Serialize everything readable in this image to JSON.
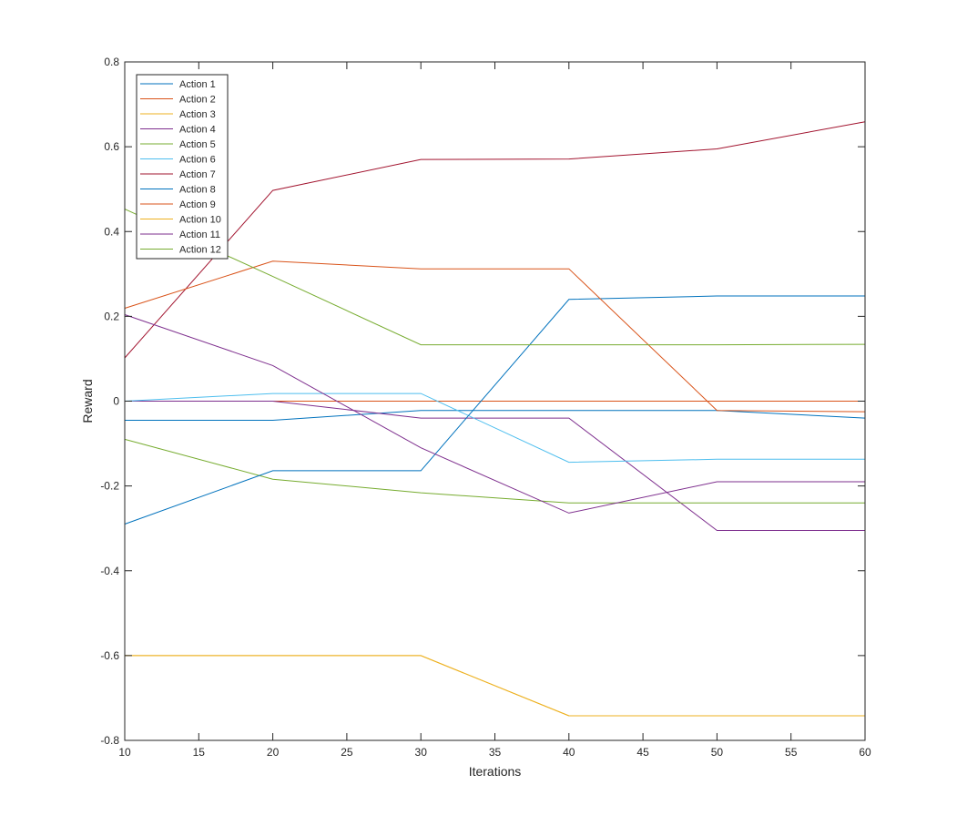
{
  "chart_data": {
    "type": "line",
    "title": "",
    "xlabel": "Iterations",
    "ylabel": "Reward",
    "xlim": [
      10,
      60
    ],
    "ylim": [
      -0.8,
      0.8
    ],
    "x_ticks": [
      "10",
      "15",
      "20",
      "25",
      "30",
      "35",
      "40",
      "45",
      "50",
      "55",
      "60"
    ],
    "y_ticks": [
      "-0.8",
      "-0.6",
      "-0.4",
      "-0.2",
      "0",
      "0.2",
      "0.4",
      "0.6",
      "0.8"
    ],
    "grid": false,
    "legend_position": "top-left",
    "x": [
      10,
      20,
      30,
      40,
      50,
      60
    ],
    "series": [
      {
        "name": "Action 1",
        "color": "#0072BD",
        "values": [
          -0.045,
          -0.045,
          -0.022,
          -0.022,
          -0.022,
          -0.04
        ]
      },
      {
        "name": "Action 2",
        "color": "#D95319",
        "values": [
          0.0,
          0.0,
          0.0,
          0.0,
          0.0,
          0.0
        ]
      },
      {
        "name": "Action 3",
        "color": "#EDB120",
        "values": [
          -0.6,
          -0.6,
          -0.6,
          -0.742,
          -0.742,
          -0.742
        ]
      },
      {
        "name": "Action 4",
        "color": "#7E2F8E",
        "values": [
          0.0,
          0.0,
          -0.04,
          -0.04,
          -0.305,
          -0.305
        ]
      },
      {
        "name": "Action 5",
        "color": "#77AC30",
        "values": [
          -0.09,
          -0.184,
          -0.216,
          -0.24,
          -0.24,
          -0.24
        ]
      },
      {
        "name": "Action 6",
        "color": "#4DBEEE",
        "values": [
          0.0,
          0.018,
          0.018,
          -0.144,
          -0.137,
          -0.137
        ]
      },
      {
        "name": "Action 7",
        "color": "#A2142F",
        "values": [
          0.102,
          0.497,
          0.57,
          0.571,
          0.595,
          0.659
        ]
      },
      {
        "name": "Action 8",
        "color": "#0072BD",
        "values": [
          -0.29,
          -0.164,
          -0.164,
          0.24,
          0.248,
          0.248
        ]
      },
      {
        "name": "Action 9",
        "color": "#D95319",
        "values": [
          0.219,
          0.33,
          0.312,
          0.312,
          -0.022,
          -0.025
        ]
      },
      {
        "name": "Action 10",
        "color": "#EDB120",
        "values": [
          -0.6,
          -0.6,
          -0.6,
          -0.742,
          -0.742,
          -0.742
        ]
      },
      {
        "name": "Action 11",
        "color": "#7E2F8E",
        "values": [
          0.204,
          0.084,
          -0.11,
          -0.264,
          -0.19,
          -0.19
        ]
      },
      {
        "name": "Action 12",
        "color": "#77AC30",
        "values": [
          0.453,
          0.294,
          0.133,
          0.133,
          0.133,
          0.134
        ]
      }
    ]
  }
}
